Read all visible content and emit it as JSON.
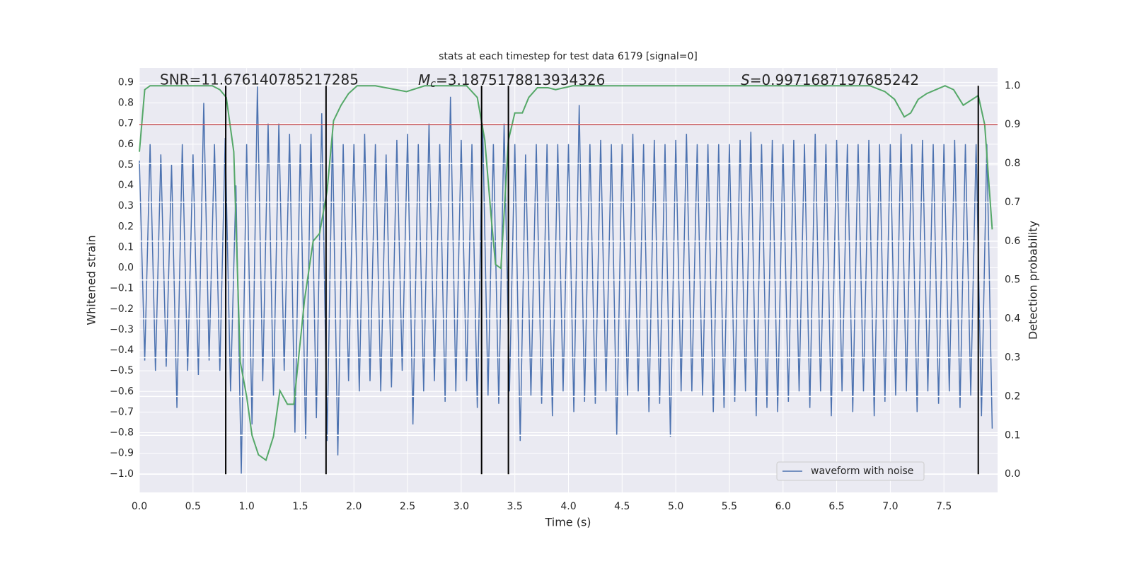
{
  "chart_data": {
    "type": "line",
    "title": "stats at each timestep for test data 6179 [signal=0]",
    "xlabel": "Time (s)",
    "ylabel": "Whitened strain",
    "y2label": "Detection probability",
    "xlim": [
      0,
      8
    ],
    "ylim": [
      -1.09,
      0.97
    ],
    "y2lim": [
      -0.047,
      1.046
    ],
    "xticks": [
      {
        "value": 0,
        "label": "0.0"
      },
      0.5,
      {
        "value": 1,
        "label": "1.0"
      },
      1.5,
      {
        "value": 2,
        "label": "2.0"
      },
      2.5,
      {
        "value": 3,
        "label": "3.0"
      },
      3.5,
      {
        "value": 4,
        "label": "4.0"
      },
      4.5,
      {
        "value": 5,
        "label": "5.0"
      },
      5.5,
      {
        "value": 6,
        "label": "6.0"
      },
      6.5,
      {
        "value": 7,
        "label": "7.0"
      },
      7.5
    ],
    "yticks": [
      {
        "value": -1,
        "label": "−1.0"
      },
      {
        "value": -0.9,
        "label": "−0.9"
      },
      {
        "value": -0.8,
        "label": "−0.8"
      },
      {
        "value": -0.7,
        "label": "−0.7"
      },
      {
        "value": -0.6,
        "label": "−0.6"
      },
      {
        "value": -0.5,
        "label": "−0.5"
      },
      {
        "value": -0.4,
        "label": "−0.4"
      },
      {
        "value": -0.3,
        "label": "−0.3"
      },
      {
        "value": -0.2,
        "label": "−0.2"
      },
      {
        "value": -0.1,
        "label": "−0.1"
      },
      {
        "value": 0,
        "label": "0.0"
      },
      0.1,
      0.2,
      0.3,
      0.4,
      0.5,
      0.6,
      0.7,
      0.8,
      0.9
    ],
    "y2ticks": [
      {
        "value": 0,
        "label": "0.0"
      },
      0.1,
      0.2,
      0.3,
      0.4,
      0.5,
      0.6,
      0.7,
      0.8,
      0.9,
      {
        "value": 1,
        "label": "1.0"
      }
    ],
    "grid": true,
    "legend": "lower right",
    "series": [
      {
        "name": "waveform with noise",
        "color": "#4c72b0",
        "x": [
          0,
          0.05,
          0.1,
          0.15,
          0.2,
          0.25,
          0.3,
          0.35,
          0.4,
          0.45,
          0.5,
          0.55,
          0.6,
          0.65,
          0.7,
          0.75,
          0.8,
          0.85,
          0.9,
          0.95,
          1,
          1.05,
          1.1,
          1.15,
          1.2,
          1.25,
          1.3,
          1.35,
          1.4,
          1.45,
          1.5,
          1.55,
          1.6,
          1.65,
          1.7,
          1.75,
          1.8,
          1.85,
          1.9,
          1.95,
          2,
          2.05,
          2.1,
          2.15,
          2.2,
          2.25,
          2.3,
          2.35,
          2.4,
          2.45,
          2.5,
          2.55,
          2.6,
          2.65,
          2.7,
          2.75,
          2.8,
          2.85,
          2.9,
          2.95,
          3,
          3.05,
          3.1,
          3.15,
          3.2,
          3.25,
          3.3,
          3.35,
          3.4,
          3.45,
          3.5,
          3.55,
          3.6,
          3.65,
          3.7,
          3.75,
          3.8,
          3.85,
          3.9,
          3.95,
          4,
          4.05,
          4.1,
          4.15,
          4.2,
          4.25,
          4.3,
          4.35,
          4.4,
          4.45,
          4.5,
          4.55,
          4.6,
          4.65,
          4.7,
          4.75,
          4.8,
          4.85,
          4.9,
          4.95,
          5,
          5.05,
          5.1,
          5.15,
          5.2,
          5.25,
          5.3,
          5.35,
          5.4,
          5.45,
          5.5,
          5.55,
          5.6,
          5.65,
          5.7,
          5.75,
          5.8,
          5.85,
          5.9,
          5.95,
          6,
          6.05,
          6.1,
          6.15,
          6.2,
          6.25,
          6.3,
          6.35,
          6.4,
          6.45,
          6.5,
          6.55,
          6.6,
          6.65,
          6.7,
          6.75,
          6.8,
          6.85,
          6.9,
          6.95,
          7,
          7.05,
          7.1,
          7.15,
          7.2,
          7.25,
          7.3,
          7.35,
          7.4,
          7.45,
          7.5,
          7.55,
          7.6,
          7.65,
          7.7,
          7.75,
          7.8,
          7.85,
          7.9,
          7.95
        ],
        "values": [
          0.52,
          -0.45,
          0.6,
          -0.5,
          0.55,
          -0.48,
          0.5,
          -0.68,
          0.6,
          -0.5,
          0.55,
          -0.52,
          0.8,
          -0.45,
          0.6,
          -0.5,
          0.63,
          -0.6,
          0.4,
          -1.0,
          0.6,
          -0.76,
          0.88,
          -0.55,
          0.7,
          -0.62,
          0.7,
          -0.5,
          0.65,
          -0.8,
          0.6,
          -0.83,
          0.65,
          -0.73,
          0.75,
          -0.84,
          0.65,
          -0.91,
          0.6,
          -0.55,
          0.6,
          -0.6,
          0.65,
          -0.55,
          0.6,
          -0.6,
          0.55,
          -0.58,
          0.62,
          -0.5,
          0.65,
          -0.76,
          0.6,
          -0.6,
          0.7,
          -0.55,
          0.6,
          -0.65,
          0.83,
          -0.6,
          0.62,
          -0.55,
          0.6,
          -0.68,
          0.7,
          -0.62,
          0.6,
          -0.66,
          0.7,
          -0.6,
          0.6,
          -0.84,
          0.55,
          -0.62,
          0.6,
          -0.66,
          0.6,
          -0.72,
          0.6,
          -0.6,
          0.6,
          -0.7,
          0.79,
          -0.65,
          0.6,
          -0.66,
          0.62,
          -0.6,
          0.6,
          -0.81,
          0.6,
          -0.62,
          0.65,
          -0.6,
          0.6,
          -0.7,
          0.62,
          -0.66,
          0.6,
          -0.82,
          0.62,
          -0.6,
          0.65,
          -0.6,
          0.6,
          -0.62,
          0.6,
          -0.7,
          0.6,
          -0.68,
          0.6,
          -0.65,
          0.62,
          -0.6,
          0.66,
          -0.72,
          0.6,
          -0.68,
          0.62,
          -0.7,
          0.6,
          -0.65,
          0.62,
          -0.6,
          0.6,
          -0.68,
          0.65,
          -0.6,
          0.6,
          -0.72,
          0.62,
          -0.6,
          0.6,
          -0.7,
          0.6,
          -0.6,
          0.62,
          -0.72,
          0.6,
          -0.65,
          0.6,
          -0.62,
          0.65,
          -0.6,
          0.6,
          -0.7,
          0.62,
          -0.6,
          0.6,
          -0.66,
          0.6,
          -0.6,
          0.62,
          -0.68,
          0.6,
          -0.62,
          0.6,
          -0.72,
          0.6,
          -0.78
        ]
      },
      {
        "color": "#55a868",
        "axis": "y2",
        "x": [
          0,
          0.05,
          0.1,
          0.68,
          0.75,
          0.81,
          0.88,
          0.94,
          1.0,
          1.05,
          1.11,
          1.18,
          1.25,
          1.31,
          1.38,
          1.44,
          1.54,
          1.62,
          1.68,
          1.75,
          1.81,
          1.88,
          1.95,
          2.03,
          2.2,
          2.49,
          2.66,
          3.05,
          3.15,
          3.22,
          3.28,
          3.32,
          3.37,
          3.44,
          3.5,
          3.57,
          3.63,
          3.71,
          3.81,
          3.88,
          4.04,
          6.81,
          6.95,
          7.04,
          7.13,
          7.19,
          7.26,
          7.34,
          7.51,
          7.59,
          7.68,
          7.82,
          7.88,
          7.95
        ],
        "values": [
          0.83,
          0.99,
          1.0,
          1.0,
          0.99,
          0.97,
          0.83,
          0.29,
          0.2,
          0.1,
          0.05,
          0.036,
          0.097,
          0.215,
          0.18,
          0.18,
          0.45,
          0.6,
          0.62,
          0.73,
          0.91,
          0.95,
          0.98,
          1.0,
          1.0,
          0.985,
          1.0,
          1.0,
          0.97,
          0.86,
          0.66,
          0.54,
          0.53,
          0.86,
          0.93,
          0.93,
          0.97,
          0.995,
          0.995,
          0.99,
          1.0,
          1.0,
          0.985,
          0.965,
          0.92,
          0.93,
          0.965,
          0.98,
          1.0,
          0.99,
          0.95,
          0.975,
          0.9,
          0.63
        ]
      }
    ],
    "hline": {
      "value": 0.9,
      "axis": "y2",
      "color": "#c44e52"
    },
    "vlines": {
      "x": [
        0.805,
        1.74,
        3.19,
        3.44,
        7.82
      ],
      "range": [
        0,
        1
      ],
      "axis": "y2",
      "color": "#000000"
    },
    "annotations": [
      {
        "text": "SNR=11.676140785217285"
      },
      {
        "symbol": "M",
        "subscript": "c",
        "text": "=3.1875178813934326"
      },
      {
        "symbol": "S",
        "text": "=0.9971687197685242"
      }
    ]
  }
}
